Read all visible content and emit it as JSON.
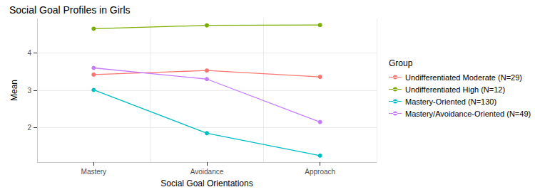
{
  "chart_data": {
    "type": "line",
    "title": "Social Goal Profiles in Girls",
    "x_label": "Social Goal Orientations",
    "y_label": "Mean",
    "legend_title": "Group",
    "legend": "right",
    "grid": true,
    "marker": "circle",
    "categories": [
      "Mastery",
      "Avoidance",
      "Approach"
    ],
    "series": [
      {
        "name": "Undifferentiated Moderate (N=29)",
        "color": "#F8766D",
        "values": [
          3.42,
          3.53,
          3.36
        ]
      },
      {
        "name": "Undifferentiated High (N=12)",
        "color": "#7CAE00",
        "values": [
          4.65,
          4.74,
          4.75
        ]
      },
      {
        "name": "Mastery-Oriented (N=130)",
        "color": "#00BFC4",
        "values": [
          3.01,
          1.85,
          1.25
        ]
      },
      {
        "name": "Mastery/Avoidance-Oriented (N=49)",
        "color": "#C77CFF",
        "values": [
          3.6,
          3.3,
          2.15
        ]
      }
    ],
    "ylim": [
      1.075,
      4.925
    ],
    "yticks": [
      2,
      3,
      4
    ]
  }
}
